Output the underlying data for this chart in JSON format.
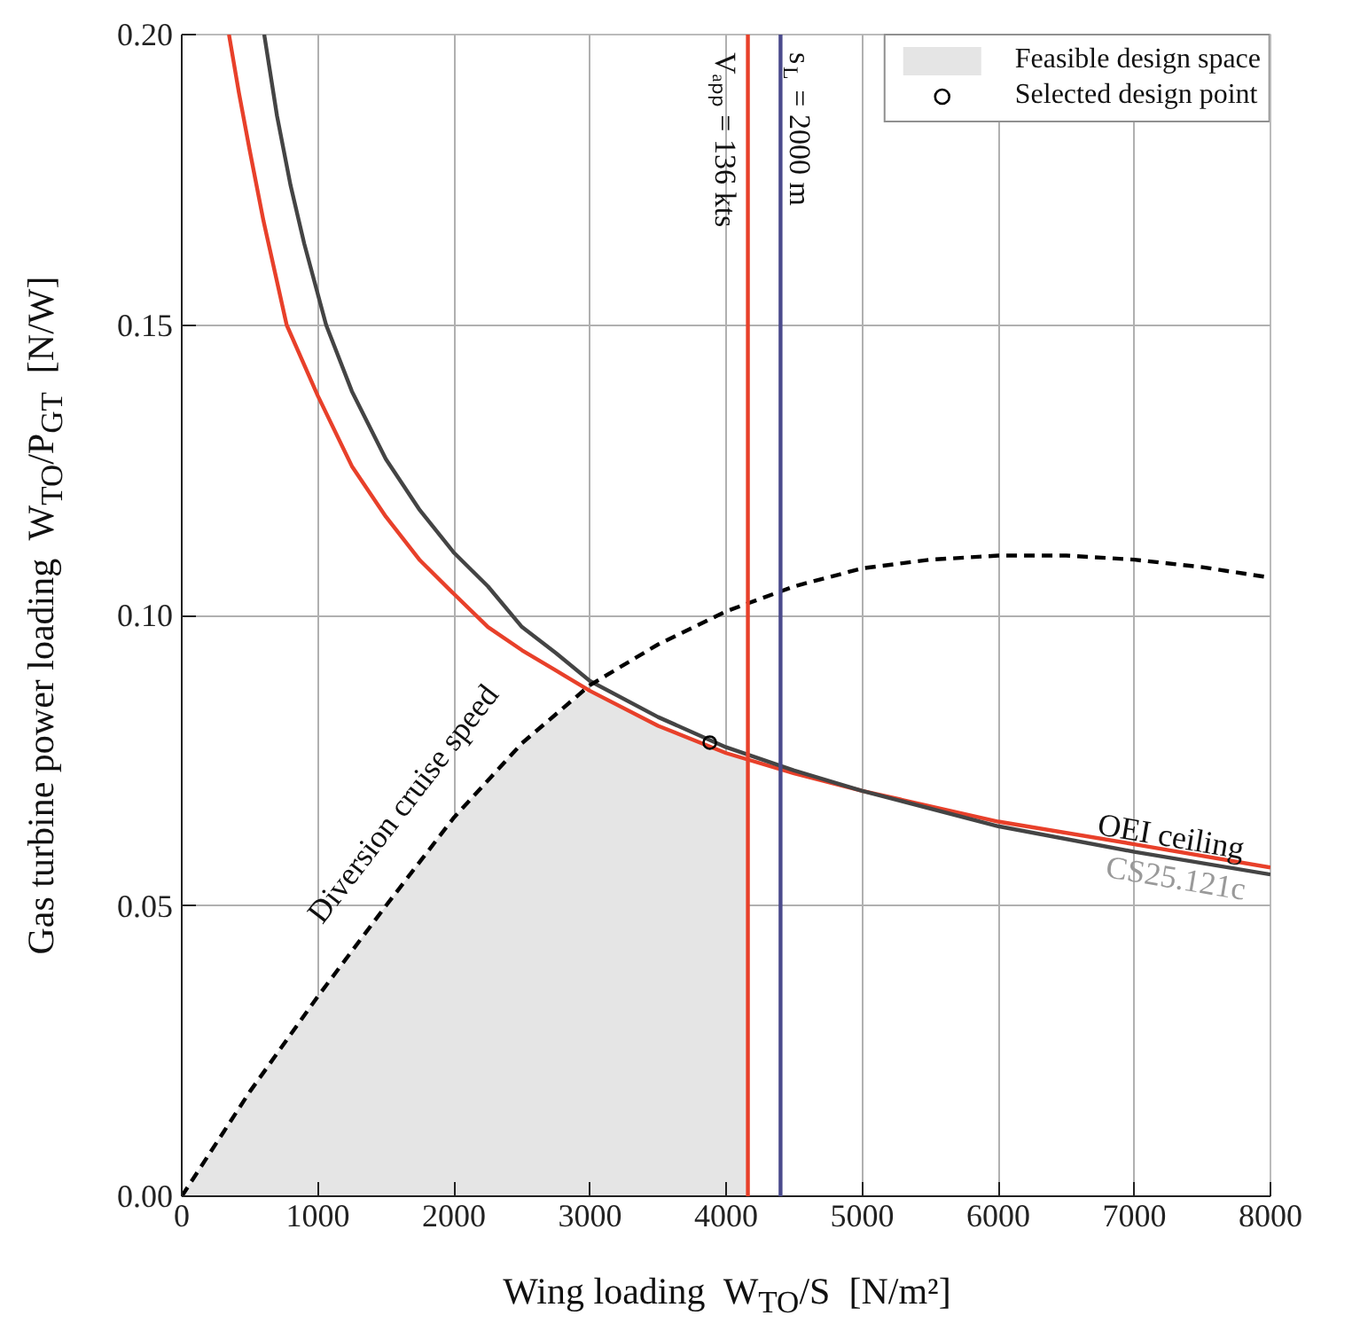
{
  "chart_data": {
    "type": "line",
    "xlabel": "Wing loading  W$_{TO}$/S  [N/m²]",
    "ylabel": "Gas turbine power loading  W$_{TO}$/P$_{GT}$  [N/W]",
    "xlim": [
      0,
      8000
    ],
    "ylim": [
      0,
      0.2
    ],
    "xticks": [
      0,
      1000,
      2000,
      3000,
      4000,
      5000,
      6000,
      7000,
      8000
    ],
    "yticks": [
      {
        "value": 0,
        "label": "0.00"
      },
      {
        "value": 0.05,
        "label": "0.05"
      },
      {
        "value": 0.1,
        "label": "0.10"
      },
      {
        "value": 0.15,
        "label": "0.15"
      },
      {
        "value": 0.2,
        "label": "0.20"
      }
    ],
    "grid": true,
    "legend": "top right",
    "series": [
      {
        "type": "area",
        "name": "Feasible design space",
        "color": "#e5e5e5",
        "x": [
          0,
          500,
          1000,
          1500,
          2000,
          2500,
          2950,
          3000,
          3500,
          4000,
          4160
        ],
        "values": [
          0,
          0.018,
          0.0344,
          0.05,
          0.0652,
          0.078,
          0.0866,
          0.087,
          0.081,
          0.0763,
          0.0753
        ]
      },
      {
        "color": "#e8402a",
        "x": [
          347,
          420,
          500,
          600,
          771,
          1000,
          1250,
          1500,
          1750,
          2000,
          2250,
          2500,
          2750,
          3000,
          3500,
          4000,
          4500,
          5000,
          6000,
          7000,
          8000
        ],
        "values": [
          0.2,
          0.19,
          0.18,
          0.168,
          0.15,
          0.1378,
          0.1257,
          0.117,
          0.1095,
          0.1037,
          0.098,
          0.094,
          0.0905,
          0.087,
          0.081,
          0.0763,
          0.0728,
          0.0698,
          0.0645,
          0.0606,
          0.0566
        ]
      },
      {
        "color": "#444444",
        "x": [
          606,
          700,
          800,
          900,
          1061,
          1250,
          1500,
          1750,
          2000,
          2250,
          2500,
          2750,
          3000,
          3500,
          4000,
          4500,
          5000,
          6000,
          7000,
          8000
        ],
        "values": [
          0.2,
          0.186,
          0.174,
          0.164,
          0.15,
          0.1386,
          0.1269,
          0.1181,
          0.1108,
          0.105,
          0.098,
          0.0935,
          0.0887,
          0.0825,
          0.0773,
          0.0733,
          0.0698,
          0.0637,
          0.0593,
          0.0554
        ]
      },
      {
        "color": "#000000",
        "line_style": "dashed",
        "x": [
          0,
          500,
          1000,
          1500,
          2000,
          2500,
          3000,
          3500,
          4000,
          4500,
          5000,
          5500,
          6000,
          6500,
          7000,
          7500,
          8000
        ],
        "values": [
          0,
          0.018,
          0.0344,
          0.05,
          0.0652,
          0.078,
          0.088,
          0.095,
          0.1007,
          0.105,
          0.1081,
          0.1096,
          0.1103,
          0.1103,
          0.1096,
          0.1083,
          0.1065
        ]
      },
      {
        "type": "scatter",
        "name": "Selected design point",
        "color": "#000000",
        "marker": "circle",
        "x": [
          3880
        ],
        "values": [
          0.0781
        ]
      }
    ],
    "ref_lines": [
      {
        "axis": "x",
        "value": 4160,
        "color": "#e8402a"
      },
      {
        "axis": "x",
        "value": 4400,
        "color": "#4a4a8c"
      }
    ],
    "annotations": [
      "OEI ceiling",
      "CS25.121c",
      "Diversion cruise speed",
      "Vₐₚₚ = 136 kts",
      "s$_{L}$ = 2000 m"
    ]
  }
}
